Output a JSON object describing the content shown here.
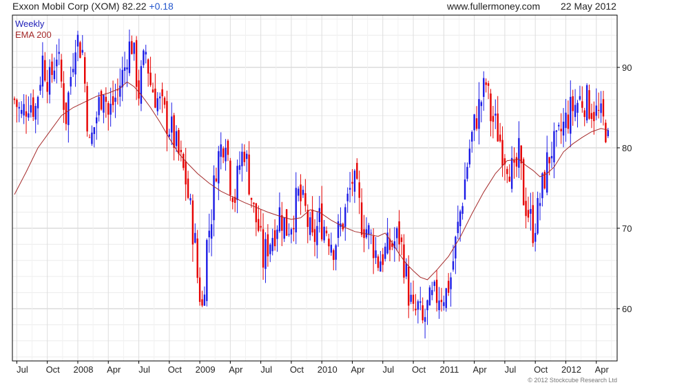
{
  "header": {
    "title": "Exxon Mobil Corp (XOM)",
    "price": "82.22",
    "change": "+0.18",
    "site": "www.fullermoney.com",
    "date": "22 May 2012"
  },
  "legend": {
    "series1": "Weekly",
    "series2": "EMA 200"
  },
  "credit": "© 2012 Stockcube Research Ltd",
  "colors": {
    "up": "#1a1ae6",
    "down": "#e60000",
    "ema": "#a52a2a",
    "grid": "#dcdcdc",
    "axis": "#000000"
  },
  "chart_data": {
    "type": "line",
    "subtype": "weekly-candlestick-with-ema",
    "title": "Exxon Mobil Corp (XOM)",
    "ylim": [
      53.5,
      96.5
    ],
    "y_ticks": [
      60,
      70,
      80,
      90
    ],
    "x_ticks": [
      "Jul",
      "Oct",
      "2008",
      "Apr",
      "Jul",
      "Oct",
      "2009",
      "Apr",
      "Jul",
      "Oct",
      "2010",
      "Apr",
      "Jul",
      "Oct",
      "2011",
      "Apr",
      "Jul",
      "Oct",
      "2012",
      "Apr"
    ],
    "x_range_weeks": [
      0,
      256
    ],
    "grid": true,
    "y_axis_side": "right",
    "legend_position": "top-left",
    "series": [
      {
        "name": "Weekly",
        "style": "candlestick",
        "close_path": [
          [
            0,
            86
          ],
          [
            3,
            84
          ],
          [
            6,
            86
          ],
          [
            9,
            85
          ],
          [
            12,
            91
          ],
          [
            15,
            88
          ],
          [
            18,
            92
          ],
          [
            22,
            84
          ],
          [
            26,
            94
          ],
          [
            29,
            92
          ],
          [
            32,
            80
          ],
          [
            35,
            84
          ],
          [
            38,
            88
          ],
          [
            40,
            84
          ],
          [
            44,
            87
          ],
          [
            47,
            90
          ],
          [
            48,
            92
          ],
          [
            50,
            93
          ],
          [
            53,
            87
          ],
          [
            56,
            92
          ],
          [
            58,
            88
          ],
          [
            61,
            86
          ],
          [
            64,
            84
          ],
          [
            67,
            82
          ],
          [
            70,
            79
          ],
          [
            73,
            76
          ],
          [
            75,
            72
          ],
          [
            77,
            68
          ],
          [
            78,
            64
          ],
          [
            80,
            60
          ],
          [
            82,
            68
          ],
          [
            84,
            72
          ],
          [
            86,
            78
          ],
          [
            88,
            80
          ],
          [
            90,
            82
          ],
          [
            92,
            76
          ],
          [
            94,
            74
          ],
          [
            96,
            78
          ],
          [
            98,
            80
          ],
          [
            100,
            76
          ],
          [
            102,
            72
          ],
          [
            104,
            70
          ],
          [
            106,
            66
          ],
          [
            108,
            68
          ],
          [
            111,
            70
          ],
          [
            113,
            72
          ],
          [
            116,
            70
          ],
          [
            118,
            71
          ],
          [
            121,
            74
          ],
          [
            124,
            72
          ],
          [
            127,
            68
          ],
          [
            130,
            71
          ],
          [
            133,
            70
          ],
          [
            136,
            68
          ],
          [
            139,
            70
          ],
          [
            141,
            72
          ],
          [
            144,
            76
          ],
          [
            146,
            74
          ],
          [
            148,
            71
          ],
          [
            150,
            70
          ],
          [
            153,
            68
          ],
          [
            155,
            66
          ],
          [
            158,
            67
          ],
          [
            161,
            68
          ],
          [
            164,
            69
          ],
          [
            166,
            66
          ],
          [
            168,
            62
          ],
          [
            170,
            59
          ],
          [
            172,
            60
          ],
          [
            174,
            58
          ],
          [
            176,
            60
          ],
          [
            178,
            61
          ],
          [
            181,
            62
          ],
          [
            184,
            62
          ],
          [
            186,
            64
          ],
          [
            188,
            68
          ],
          [
            190,
            72
          ],
          [
            192,
            76
          ],
          [
            194,
            80
          ],
          [
            197,
            84
          ],
          [
            199,
            86
          ],
          [
            201,
            88
          ],
          [
            203,
            84
          ],
          [
            206,
            82
          ],
          [
            208,
            80
          ],
          [
            211,
            78
          ],
          [
            213,
            76
          ],
          [
            215,
            79
          ],
          [
            217,
            74
          ],
          [
            219,
            72
          ],
          [
            221,
            70
          ],
          [
            223,
            72
          ],
          [
            225,
            75
          ],
          [
            227,
            78
          ],
          [
            229,
            80
          ],
          [
            231,
            80
          ],
          [
            233,
            82
          ],
          [
            236,
            84
          ],
          [
            238,
            85
          ],
          [
            241,
            86
          ],
          [
            243,
            86
          ],
          [
            246,
            85
          ],
          [
            249,
            84
          ],
          [
            251,
            83
          ],
          [
            253,
            82.2
          ]
        ],
        "wick_range_notes": {
          "high": 96.0,
          "low": 56.0
        }
      },
      {
        "name": "EMA 200",
        "style": "line",
        "points": [
          [
            0,
            74.2
          ],
          [
            5,
            77
          ],
          [
            10,
            80
          ],
          [
            15,
            82
          ],
          [
            20,
            84
          ],
          [
            25,
            85
          ],
          [
            30,
            85.7
          ],
          [
            35,
            86.4
          ],
          [
            40,
            86.8
          ],
          [
            45,
            87.4
          ],
          [
            48,
            88.2
          ],
          [
            51,
            87.6
          ],
          [
            54,
            86.6
          ],
          [
            58,
            85
          ],
          [
            62,
            83.2
          ],
          [
            66,
            81.2
          ],
          [
            70,
            79.3
          ],
          [
            74,
            78
          ],
          [
            78,
            76.8
          ],
          [
            83,
            75.6
          ],
          [
            88,
            74.6
          ],
          [
            93,
            73.9
          ],
          [
            98,
            73.2
          ],
          [
            103,
            72.6
          ],
          [
            108,
            72.0
          ],
          [
            113,
            71.5
          ],
          [
            118,
            71.1
          ],
          [
            122,
            71.3
          ],
          [
            126,
            72.3
          ],
          [
            130,
            72.0
          ],
          [
            135,
            71.0
          ],
          [
            140,
            70.2
          ],
          [
            145,
            69.6
          ],
          [
            150,
            69.3
          ],
          [
            155,
            69.0
          ],
          [
            158,
            69.4
          ],
          [
            161,
            68.2
          ],
          [
            164,
            66.8
          ],
          [
            167,
            65.6
          ],
          [
            170,
            64.7
          ],
          [
            173,
            63.9
          ],
          [
            176,
            63.6
          ],
          [
            180,
            64.8
          ],
          [
            185,
            66.5
          ],
          [
            190,
            68.9
          ],
          [
            195,
            71.8
          ],
          [
            200,
            74.5
          ],
          [
            205,
            76.8
          ],
          [
            210,
            78.4
          ],
          [
            215,
            78.6
          ],
          [
            218,
            77.8
          ],
          [
            221,
            77.2
          ],
          [
            224,
            76.4
          ],
          [
            227,
            76.8
          ],
          [
            230,
            77.6
          ],
          [
            234,
            79.5
          ],
          [
            238,
            80.5
          ],
          [
            242,
            81.3
          ],
          [
            246,
            82.0
          ],
          [
            250,
            82.4
          ],
          [
            253,
            82.2
          ]
        ]
      }
    ]
  }
}
